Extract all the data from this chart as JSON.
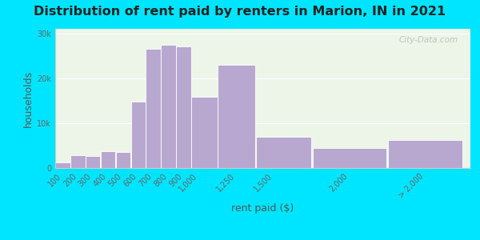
{
  "title": "Distribution of rent paid by renters in Marion, IN in 2021",
  "xlabel": "rent paid ($)",
  "ylabel": "households",
  "bar_color": "#b8a8d0",
  "bar_edgecolor": "#ffffff",
  "categories": [
    "100",
    "200",
    "300",
    "400",
    "500",
    "600",
    "700",
    "800",
    "900",
    "1,000",
    "1,250",
    "1,500",
    "2,000",
    "> 2,000"
  ],
  "values": [
    1200,
    2800,
    2700,
    3700,
    3500,
    14800,
    26500,
    27500,
    27000,
    15800,
    23000,
    7000,
    4500,
    6200
  ],
  "bin_edges": [
    50,
    150,
    250,
    350,
    450,
    550,
    650,
    750,
    850,
    950,
    1125,
    1375,
    1750,
    2250,
    2750
  ],
  "xtick_positions": [
    100,
    200,
    300,
    400,
    500,
    600,
    700,
    800,
    900,
    1000,
    1250,
    1500,
    2000,
    2500
  ],
  "xtick_labels": [
    "100",
    "200",
    "300",
    "400",
    "500",
    "600",
    "700",
    "800",
    "900",
    "1,000",
    "1,250",
    "1,500",
    "2,000",
    "> 2,000"
  ],
  "yticks": [
    0,
    10000,
    20000,
    30000
  ],
  "ytick_labels": [
    "0",
    "10k",
    "20k",
    "30k"
  ],
  "ylim": [
    0,
    31000
  ],
  "xlim": [
    50,
    2800
  ],
  "background_color": "#edf5e8",
  "outer_background": "#00e5ff",
  "title_fontsize": 11.5,
  "axis_label_fontsize": 9,
  "tick_fontsize": 7,
  "watermark_text": "City-Data.com"
}
